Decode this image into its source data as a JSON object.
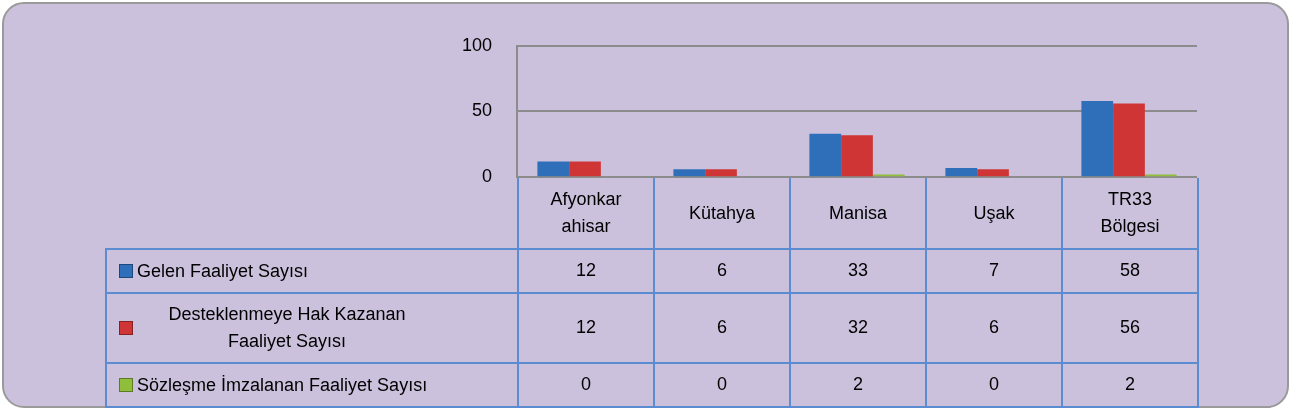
{
  "chart_data": {
    "type": "bar",
    "categories": [
      "Afyonkarahisar",
      "Kütahya",
      "Manisa",
      "Uşak",
      "TR33 Bölgesi"
    ],
    "series": [
      {
        "name": "Gelen Faaliyet Sayısı",
        "color": "#2f6fba",
        "values": [
          12,
          6,
          33,
          7,
          58
        ]
      },
      {
        "name": "Desteklenmeye Hak Kazanan Faaliyet Sayısı",
        "color": "#d03535",
        "values": [
          12,
          6,
          32,
          6,
          56
        ]
      },
      {
        "name": "Sözleşme İmzalanan Faaliyet Sayısı",
        "color": "#8fbe3a",
        "values": [
          0,
          0,
          2,
          0,
          2
        ]
      }
    ],
    "ylim": [
      0,
      100
    ],
    "yticks": [
      0,
      50,
      100
    ],
    "grid": "y",
    "legend": "bottom left",
    "data_labels": true
  }
}
